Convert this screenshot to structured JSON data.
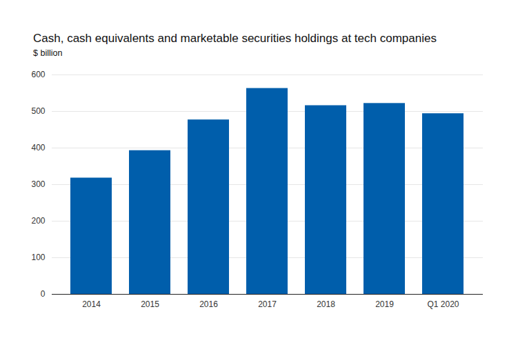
{
  "chart_data": {
    "type": "bar",
    "title": "Cash, cash equivalents and marketable securities holdings at tech companies",
    "subtitle": "$ billion",
    "categories": [
      "2014",
      "2015",
      "2016",
      "2017",
      "2018",
      "2019",
      "Q1 2020"
    ],
    "values": [
      318,
      393,
      477,
      563,
      516,
      522,
      494
    ],
    "color": "#005eab",
    "ylim": [
      0,
      600
    ],
    "yticks": [
      0,
      100,
      200,
      300,
      400,
      500,
      600
    ],
    "grid": true
  }
}
